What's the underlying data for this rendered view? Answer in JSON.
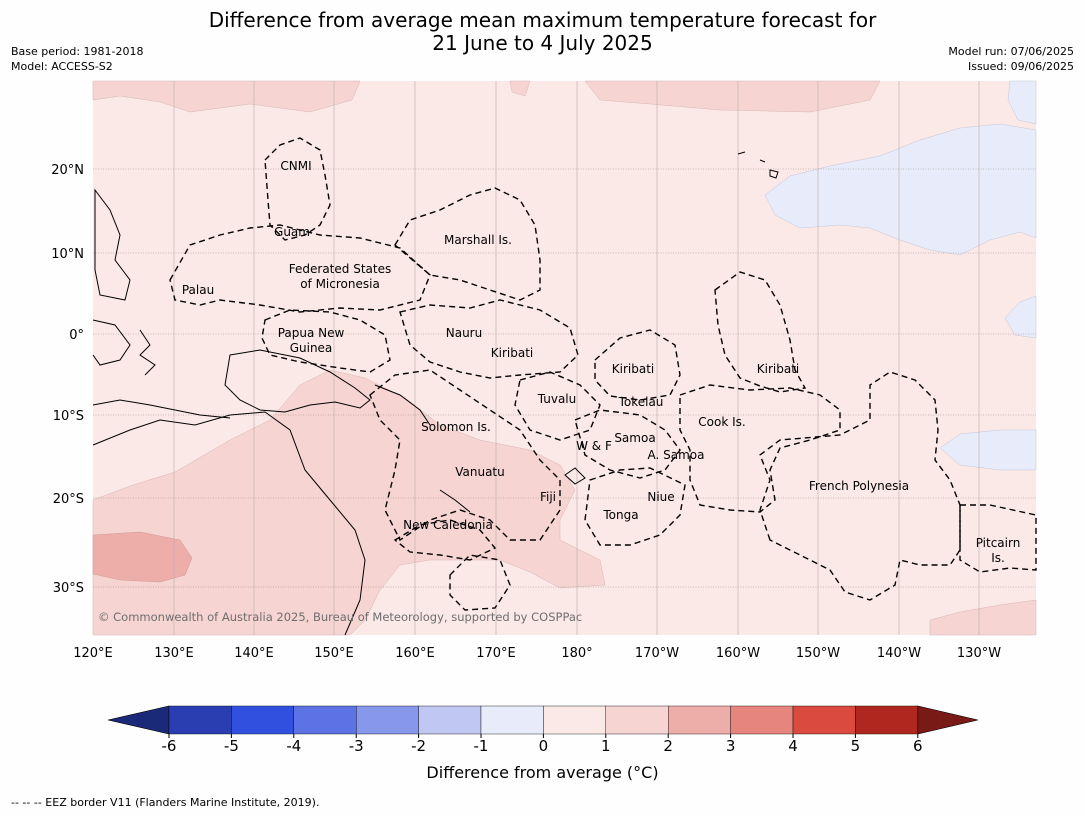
{
  "title": {
    "line1": "Difference from average mean maximum temperature forecast for",
    "line2": "21 June to 4 July 2025"
  },
  "meta_left": {
    "base_period": "Base period: 1981-2018",
    "model": "Model: ACCESS-S2"
  },
  "meta_right": {
    "model_run": "Model run: 07/06/2025",
    "issued": "Issued: 09/06/2025"
  },
  "map": {
    "lon_ticks": [
      "120°E",
      "130°E",
      "140°E",
      "150°E",
      "160°E",
      "170°E",
      "180°",
      "170°W",
      "160°W",
      "150°W",
      "140°W",
      "130°W"
    ],
    "lat_ticks": [
      "20°N",
      "10°N",
      "0°",
      "10°S",
      "20°S",
      "30°S"
    ],
    "copyright": "© Commonwealth of Australia 2025, Bureau of Meteorology, supported by COSPPac",
    "region_labels": [
      {
        "text": "CNMI"
      },
      {
        "text": "Guam"
      },
      {
        "text": "Marshall Is."
      },
      {
        "text": "Federated States"
      },
      {
        "text": "of Micronesia"
      },
      {
        "text": "Palau"
      },
      {
        "text": "Papua New"
      },
      {
        "text": "Guinea"
      },
      {
        "text": "Nauru"
      },
      {
        "text": "Kiribati"
      },
      {
        "text": "Kiribati"
      },
      {
        "text": "Kiribati"
      },
      {
        "text": "Tuvalu"
      },
      {
        "text": "Tokelau"
      },
      {
        "text": "Cook Is."
      },
      {
        "text": "Solomon Is."
      },
      {
        "text": "Samoa"
      },
      {
        "text": "W & F"
      },
      {
        "text": "A. Samoa"
      },
      {
        "text": "Vanuatu"
      },
      {
        "text": "Fiji"
      },
      {
        "text": "Niue"
      },
      {
        "text": "French Polynesia"
      },
      {
        "text": "Tonga"
      },
      {
        "text": "New Caledonia"
      },
      {
        "text": "Pitcairn"
      },
      {
        "text": "Is."
      }
    ]
  },
  "colorbar": {
    "colors": [
      "#2a3eb1",
      "#3250e0",
      "#5d72e4",
      "#8797ec",
      "#bfc7f2",
      "#e8ecfa",
      "#fbe9e7",
      "#f6d4d1",
      "#edaeaa",
      "#e6857e",
      "#da4a3e",
      "#b0271f"
    ],
    "low_extend_color": "#1b2a78",
    "high_extend_color": "#7a1a16",
    "tick_labels": [
      "-6",
      "-5",
      "-4",
      "-3",
      "-2",
      "-1",
      "0",
      "1",
      "2",
      "3",
      "4",
      "5",
      "6"
    ],
    "label": "Difference from average (°C)"
  },
  "footer": "--  --  -- EEZ border V11 (Flanders Marine Institute, 2019)."
}
